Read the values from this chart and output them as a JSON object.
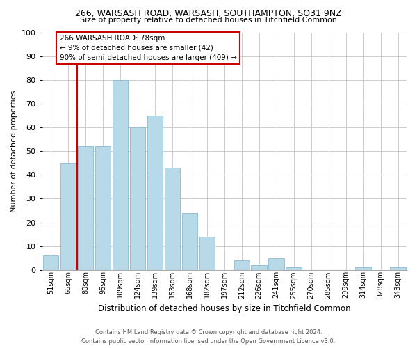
{
  "title1": "266, WARSASH ROAD, WARSASH, SOUTHAMPTON, SO31 9NZ",
  "title2": "Size of property relative to detached houses in Titchfield Common",
  "xlabel": "Distribution of detached houses by size in Titchfield Common",
  "ylabel": "Number of detached properties",
  "bin_labels": [
    "51sqm",
    "66sqm",
    "80sqm",
    "95sqm",
    "109sqm",
    "124sqm",
    "139sqm",
    "153sqm",
    "168sqm",
    "182sqm",
    "197sqm",
    "212sqm",
    "226sqm",
    "241sqm",
    "255sqm",
    "270sqm",
    "285sqm",
    "299sqm",
    "314sqm",
    "328sqm",
    "343sqm"
  ],
  "bar_heights": [
    6,
    45,
    52,
    52,
    80,
    60,
    65,
    43,
    24,
    14,
    0,
    4,
    2,
    5,
    1,
    0,
    0,
    0,
    1,
    0,
    1
  ],
  "bar_color": "#b8d9e8",
  "bar_edge_color": "#8bbbd4",
  "vline_x_index": 2,
  "vline_color": "#cc0000",
  "ylim": [
    0,
    100
  ],
  "yticks": [
    0,
    10,
    20,
    30,
    40,
    50,
    60,
    70,
    80,
    90,
    100
  ],
  "annotation_title": "266 WARSASH ROAD: 78sqm",
  "annotation_line1": "← 9% of detached houses are smaller (42)",
  "annotation_line2": "90% of semi-detached houses are larger (409) →",
  "annotation_box_color": "#ffffff",
  "annotation_box_edge": "#cc0000",
  "footer1": "Contains HM Land Registry data © Crown copyright and database right 2024.",
  "footer2": "Contains public sector information licensed under the Open Government Licence v3.0."
}
